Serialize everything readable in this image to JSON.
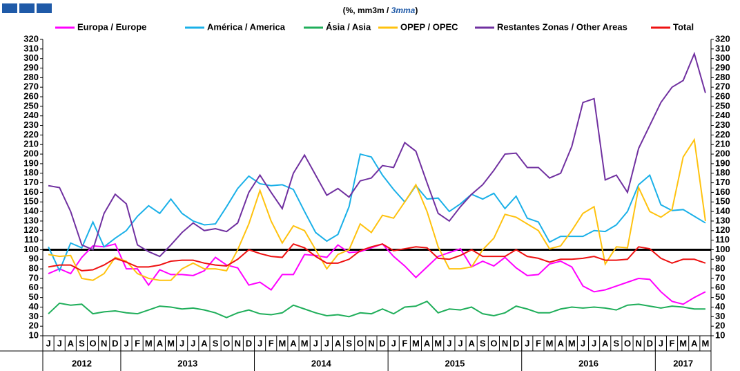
{
  "chart_data": {
    "type": "line",
    "subtitle": [
      "(%, mm3m / ",
      "3mma",
      ")"
    ],
    "categories": [
      "J",
      "J",
      "A",
      "S",
      "O",
      "N",
      "D",
      "J",
      "F",
      "M",
      "A",
      "M",
      "J",
      "J",
      "A",
      "S",
      "O",
      "N",
      "D",
      "J",
      "F",
      "M",
      "A",
      "M",
      "J",
      "J",
      "A",
      "S",
      "O",
      "N",
      "D",
      "J",
      "F",
      "M",
      "A",
      "M",
      "J",
      "J",
      "A",
      "S",
      "O",
      "N",
      "D",
      "J",
      "F",
      "M",
      "A",
      "M",
      "J",
      "J",
      "A",
      "S",
      "O",
      "N",
      "D",
      "J",
      "F",
      "M",
      "A",
      "M"
    ],
    "years": [
      "2012",
      "2013",
      "2014",
      "2015",
      "2016",
      "2017"
    ],
    "ylim": [
      10,
      320
    ],
    "yticks": [
      10,
      20,
      30,
      40,
      50,
      60,
      70,
      80,
      90,
      100,
      110,
      120,
      130,
      140,
      150,
      160,
      170,
      180,
      190,
      200,
      210,
      220,
      230,
      240,
      250,
      260,
      270,
      280,
      290,
      300,
      310,
      320
    ],
    "reference_line": 100,
    "series": [
      {
        "name": "Europa / Europe",
        "color": "#ff00ff",
        "values": [
          75,
          80,
          75,
          92,
          104,
          103,
          106,
          80,
          80,
          63,
          79,
          74,
          74,
          73,
          78,
          92,
          84,
          81,
          63,
          66,
          58,
          74,
          74,
          95,
          94,
          92,
          105,
          97,
          98,
          102,
          106,
          93,
          83,
          71,
          82,
          93,
          97,
          101,
          82,
          88,
          83,
          92,
          81,
          73,
          74,
          85,
          88,
          82,
          62,
          56,
          58,
          62,
          66,
          70,
          69,
          56,
          46,
          43,
          50,
          56
        ]
      },
      {
        "name": "América / America",
        "color": "#1ab0e8",
        "values": [
          103,
          78,
          107,
          102,
          129,
          103,
          112,
          120,
          135,
          146,
          138,
          153,
          138,
          130,
          126,
          127,
          145,
          164,
          177,
          169,
          167,
          168,
          163,
          140,
          118,
          109,
          116,
          145,
          200,
          197,
          178,
          163,
          150,
          167,
          153,
          154,
          140,
          148,
          158,
          153,
          159,
          143,
          156,
          133,
          129,
          108,
          114,
          114,
          114,
          120,
          119,
          126,
          140,
          168,
          178,
          147,
          141,
          142,
          135,
          128
        ]
      },
      {
        "name": "Ásia / Asia",
        "color": "#1fae5a",
        "values": [
          33,
          44,
          42,
          43,
          33,
          35,
          36,
          34,
          33,
          37,
          41,
          40,
          38,
          39,
          37,
          34,
          29,
          34,
          37,
          33,
          32,
          34,
          42,
          38,
          34,
          31,
          32,
          30,
          34,
          33,
          38,
          33,
          40,
          41,
          46,
          34,
          38,
          37,
          40,
          33,
          31,
          34,
          41,
          38,
          34,
          34,
          38,
          40,
          39,
          40,
          39,
          37,
          42,
          43,
          41,
          39,
          41,
          40,
          38,
          38
        ]
      },
      {
        "name": "OPEP / OPEC",
        "color": "#ffc20e",
        "values": [
          95,
          93,
          94,
          70,
          68,
          75,
          92,
          88,
          75,
          70,
          68,
          68,
          80,
          86,
          80,
          80,
          78,
          100,
          127,
          162,
          130,
          107,
          125,
          120,
          100,
          80,
          95,
          100,
          127,
          118,
          136,
          133,
          150,
          168,
          140,
          103,
          80,
          80,
          82,
          100,
          112,
          137,
          134,
          127,
          120,
          101,
          104,
          120,
          138,
          145,
          85,
          103,
          102,
          165,
          140,
          134,
          142,
          197,
          215,
          130
        ]
      },
      {
        "name": "Restantes Zonas / Other Areas",
        "color": "#7030a0",
        "values": [
          167,
          165,
          140,
          105,
          100,
          138,
          158,
          148,
          105,
          98,
          93,
          105,
          118,
          128,
          120,
          122,
          119,
          128,
          160,
          178,
          160,
          143,
          180,
          199,
          178,
          157,
          164,
          155,
          172,
          175,
          188,
          186,
          212,
          203,
          170,
          138,
          130,
          145,
          158,
          168,
          183,
          200,
          201,
          186,
          186,
          175,
          180,
          208,
          254,
          258,
          173,
          178,
          160,
          206,
          230,
          254,
          270,
          277,
          305,
          264
        ]
      },
      {
        "name": "Total",
        "color": "#ee1111",
        "values": [
          82,
          84,
          84,
          78,
          79,
          84,
          91,
          87,
          82,
          82,
          84,
          88,
          89,
          89,
          86,
          84,
          83,
          90,
          100,
          96,
          93,
          92,
          106,
          102,
          93,
          86,
          86,
          90,
          99,
          103,
          106,
          99,
          101,
          103,
          102,
          91,
          90,
          94,
          100,
          93,
          93,
          93,
          100,
          93,
          91,
          87,
          90,
          90,
          91,
          93,
          89,
          89,
          90,
          103,
          101,
          91,
          86,
          90,
          90,
          86
        ]
      }
    ]
  }
}
